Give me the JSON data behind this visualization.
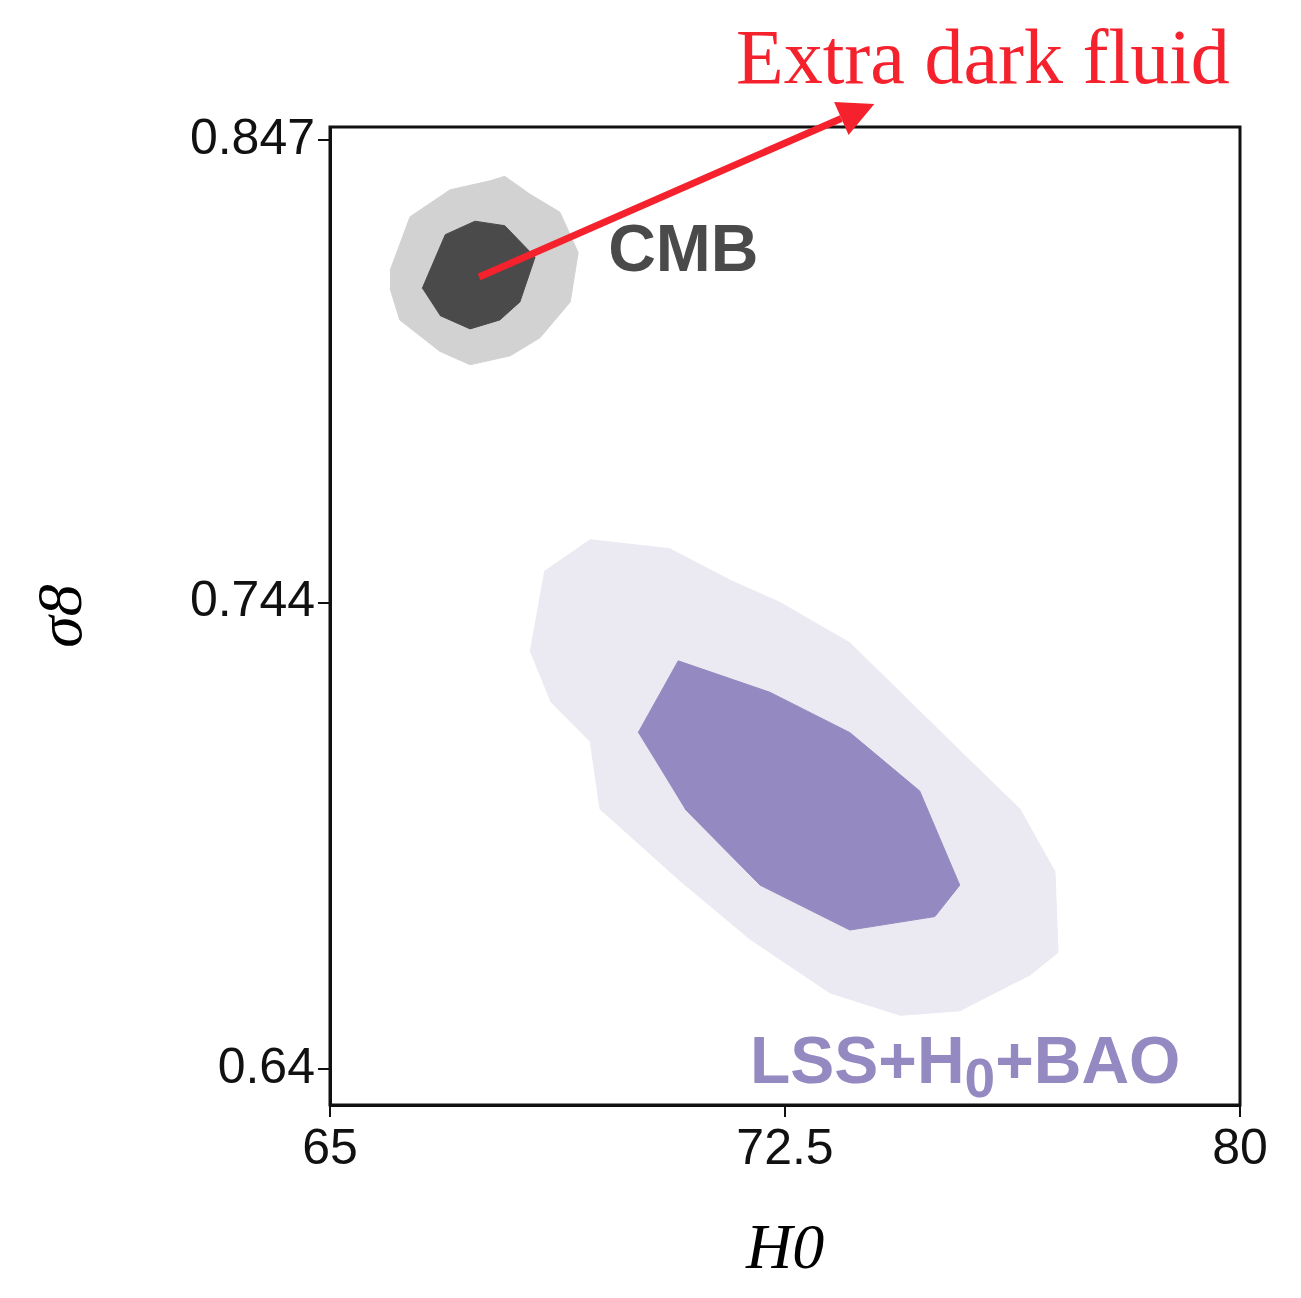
{
  "chart_data": {
    "type": "area",
    "xlabel": "H0",
    "ylabel": "σ8",
    "xlim": [
      65,
      80
    ],
    "xticks": [
      65,
      72.5,
      80
    ],
    "ylim": [
      0.632,
      0.85
    ],
    "yticks": [
      0.64,
      0.744,
      0.847
    ],
    "series": [
      {
        "name": "CMB",
        "color": "#d2d2d2",
        "x": [
          65.99,
          66.32,
          66.98,
          67.64,
          67.88,
          68.3,
          68.79,
          69.09,
          68.96,
          68.46,
          67.97,
          67.31,
          66.81,
          66.15,
          65.99
        ],
        "values": [
          0.818,
          0.83,
          0.836,
          0.838,
          0.839,
          0.835,
          0.831,
          0.822,
          0.811,
          0.803,
          0.799,
          0.797,
          0.8,
          0.807,
          0.814
        ]
      },
      {
        "color": "#4a4a4a",
        "x": [
          66.52,
          66.9,
          67.39,
          67.88,
          68.38,
          68.13,
          67.8,
          67.31,
          66.81
        ],
        "values": [
          0.814,
          0.826,
          0.829,
          0.828,
          0.821,
          0.811,
          0.807,
          0.805,
          0.808
        ]
      },
      {
        "name": "LSS+H$_{0}$+BAO",
        "color": "#ebe9f2",
        "x": [
          68.3,
          68.54,
          69.29,
          70.6,
          71.59,
          72.42,
          73.57,
          74.4,
          75.38,
          76.37,
          76.95,
          77.0,
          76.54,
          75.38,
          74.4,
          73.24,
          71.92,
          70.77,
          69.45,
          69.29,
          68.63
        ],
        "values": [
          0.733,
          0.751,
          0.758,
          0.756,
          0.749,
          0.744,
          0.735,
          0.724,
          0.711,
          0.698,
          0.684,
          0.666,
          0.661,
          0.653,
          0.652,
          0.657,
          0.669,
          0.682,
          0.698,
          0.713,
          0.722
        ]
      },
      {
        "color": "#9489c0",
        "x": [
          70.08,
          70.74,
          72.25,
          73.57,
          74.72,
          75.38,
          74.97,
          73.57,
          72.09,
          70.85
        ],
        "values": [
          0.715,
          0.731,
          0.724,
          0.715,
          0.702,
          0.681,
          0.674,
          0.671,
          0.681,
          0.698
        ]
      }
    ],
    "annotations": [
      "Extra dark fluid"
    ]
  }
}
